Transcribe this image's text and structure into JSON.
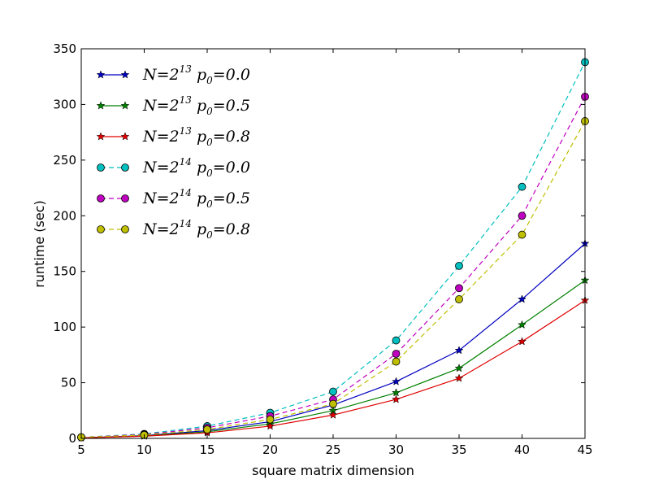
{
  "chart_data": {
    "type": "line",
    "title": "",
    "xlabel": "square matrix dimension",
    "ylabel": "runtime (sec)",
    "xlim": [
      5,
      45
    ],
    "ylim": [
      0,
      350
    ],
    "xticks": [
      5,
      10,
      15,
      20,
      25,
      30,
      35,
      40,
      45
    ],
    "yticks": [
      0,
      50,
      100,
      150,
      200,
      250,
      300,
      350
    ],
    "grid": false,
    "legend_position": "top-left",
    "x": [
      5,
      10,
      15,
      20,
      25,
      30,
      35,
      40,
      45
    ],
    "series": [
      {
        "name": "N=2^13 p_0=0.0",
        "label_parts": [
          "N=2",
          "13",
          " p",
          "0",
          "=0.0"
        ],
        "color": "#0000bf",
        "linestyle": "solid",
        "marker": "star",
        "values": [
          0.5,
          2.5,
          7,
          15,
          30,
          51,
          79,
          125,
          175
        ]
      },
      {
        "name": "N=2^13 p_0=0.5",
        "label_parts": [
          "N=2",
          "13",
          " p",
          "0",
          "=0.5"
        ],
        "color": "#008000",
        "linestyle": "solid",
        "marker": "star",
        "values": [
          0.5,
          2.2,
          6,
          13,
          25,
          41,
          63,
          102,
          142
        ]
      },
      {
        "name": "N=2^13 p_0=0.8",
        "label_parts": [
          "N=2",
          "13",
          " p",
          "0",
          "=0.8"
        ],
        "color": "#e00000",
        "linestyle": "solid",
        "marker": "star",
        "values": [
          0.5,
          2,
          5,
          11,
          21,
          35,
          54,
          87,
          124
        ]
      },
      {
        "name": "N=2^14 p_0=0.0",
        "label_parts": [
          "N=2",
          "14",
          " p",
          "0",
          "=0.0"
        ],
        "color": "#00bfbf",
        "linestyle": "dashed",
        "marker": "circle",
        "values": [
          1,
          4,
          11,
          23,
          42,
          88,
          155,
          226,
          338
        ]
      },
      {
        "name": "N=2^14 p_0=0.5",
        "label_parts": [
          "N=2",
          "14",
          " p",
          "0",
          "=0.5"
        ],
        "color": "#bf00bf",
        "linestyle": "dashed",
        "marker": "circle",
        "values": [
          1,
          3.5,
          9.5,
          20,
          35,
          76,
          135,
          200,
          307
        ]
      },
      {
        "name": "N=2^14 p_0=0.8",
        "label_parts": [
          "N=2",
          "14",
          " p",
          "0",
          "=0.8"
        ],
        "color": "#bfbf00",
        "linestyle": "dashed",
        "marker": "circle",
        "values": [
          1,
          3,
          8,
          17,
          31,
          69,
          125,
          183,
          285
        ]
      }
    ]
  }
}
